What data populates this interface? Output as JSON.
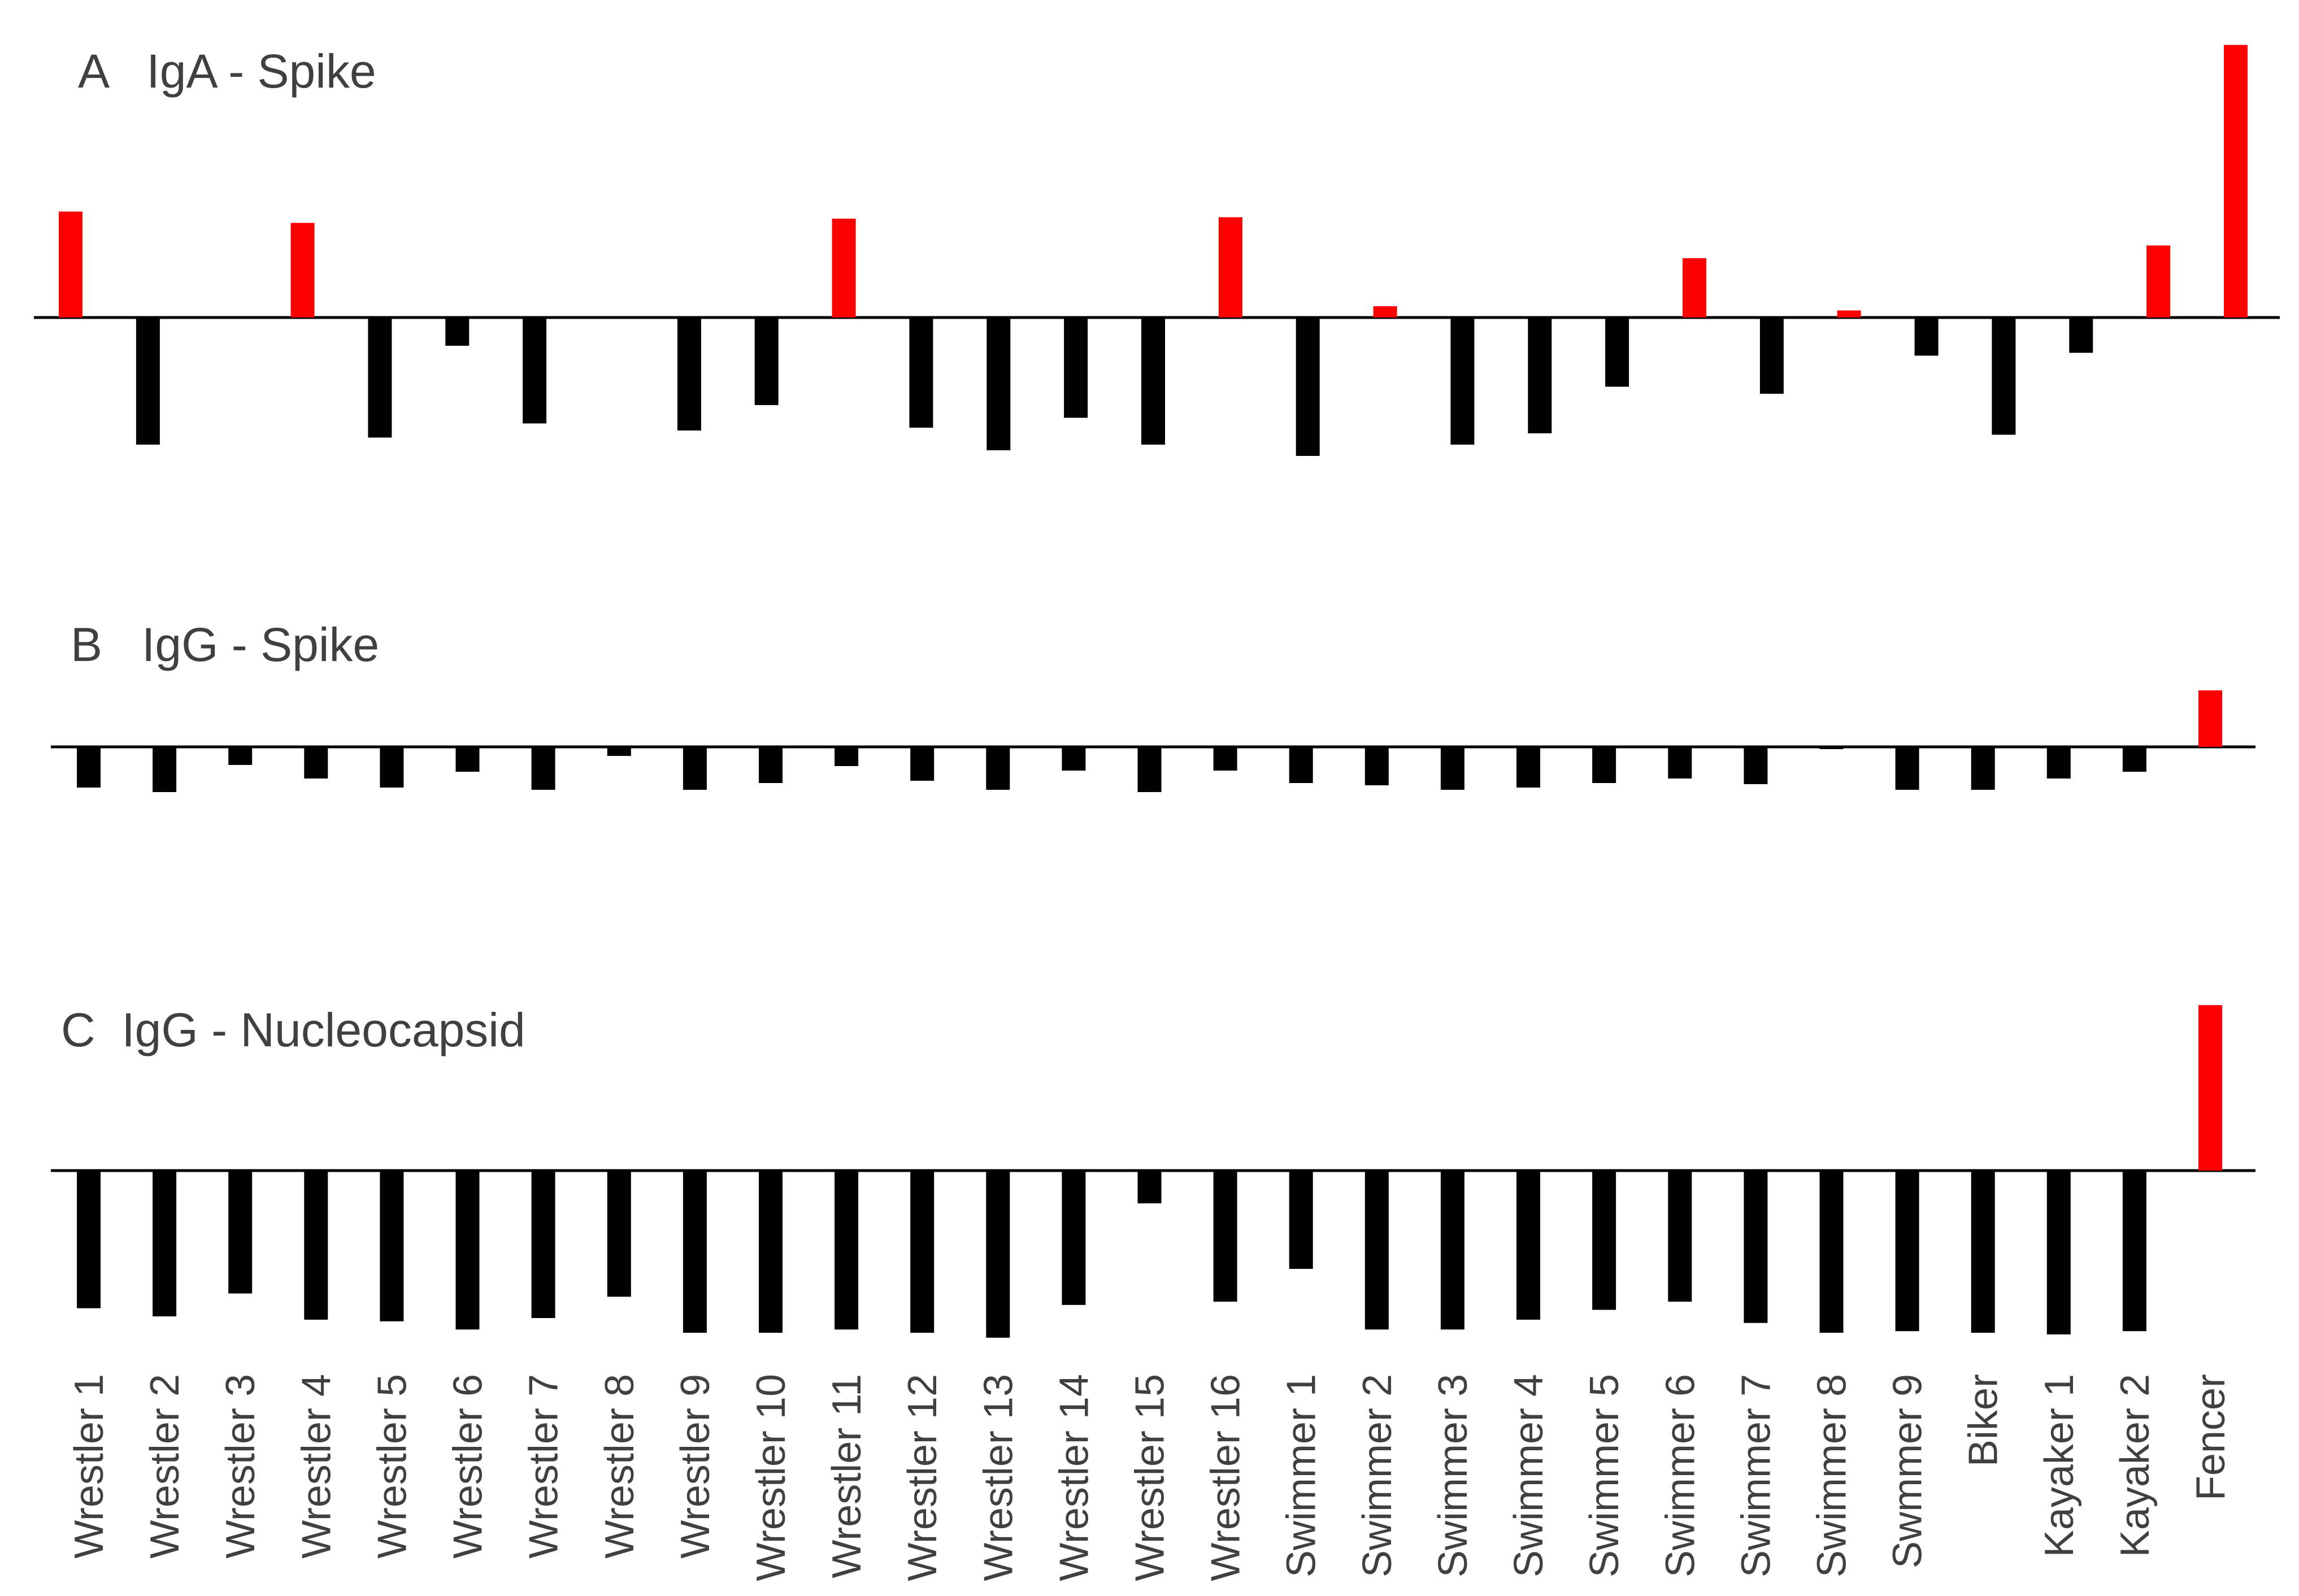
{
  "chart_data": [
    {
      "type": "bar",
      "title": "A   IgA - Spike",
      "categories": [
        "Wrestler 1",
        "Wrestler 2",
        "Wrestler 3",
        "Wrestler 4",
        "Wrestler 5",
        "Wrestler 6",
        "Wrestler 7",
        "Wrestler 8",
        "Wrestler 9",
        "Wrestler 10",
        "Wrestler 11",
        "Wrestler 12",
        "Wrestler 13",
        "Wrestler 14",
        "Wrestler 15",
        "Wrestler 16",
        "Swimmer 1",
        "Swimmer 2",
        "Swimmer 3",
        "Swimmer 4",
        "Swimmer 5",
        "Swimmer 6",
        "Swimmer 7",
        "Swimmer 8",
        "Swmmer 9",
        "Biker",
        "Kayaker 1",
        "Kayaker 2",
        "Fencer"
      ],
      "values": [
        0.75,
        -0.9,
        0,
        0.67,
        -0.85,
        -0.2,
        -0.75,
        0,
        -0.8,
        -0.62,
        0.7,
        -0.78,
        -0.94,
        -0.71,
        -0.9,
        0.71,
        -0.98,
        0.08,
        -0.9,
        -0.82,
        -0.49,
        0.42,
        -0.54,
        0.05,
        -0.27,
        -0.83,
        -0.25,
        0.51,
        1.93
      ],
      "ylim": [
        -1.5,
        2.0
      ],
      "xlabel": "",
      "ylabel": "",
      "grid": false,
      "colors": {
        "positive": "#ff0000",
        "negative": "#000000"
      }
    },
    {
      "type": "bar",
      "title": "B   IgG - Spike",
      "categories": [
        "Wrestler 1",
        "Wrestler 2",
        "Wrestler 3",
        "Wrestler 4",
        "Wrestler 5",
        "Wrestler 6",
        "Wrestler 7",
        "Wrestler 8",
        "Wrestler 9",
        "Wrestler 10",
        "Wrestler 11",
        "Wrestler 12",
        "Wrestler 13",
        "Wrestler 14",
        "Wrestler 15",
        "Wrestler 16",
        "Swimmer 1",
        "Swimmer 2",
        "Swimmer 3",
        "Swimmer 4",
        "Swimmer 5",
        "Swimmer 6",
        "Swimmer 7",
        "Swimmer 8",
        "Swmmer 9",
        "Biker",
        "Kayaker 1",
        "Kayaker 2",
        "Fencer"
      ],
      "values": [
        -0.36,
        -0.4,
        -0.16,
        -0.28,
        -0.36,
        -0.22,
        -0.38,
        -0.08,
        -0.38,
        -0.32,
        -0.17,
        -0.3,
        -0.38,
        -0.21,
        -0.4,
        -0.21,
        -0.32,
        -0.34,
        -0.38,
        -0.36,
        -0.32,
        -0.28,
        -0.33,
        -0.02,
        -0.38,
        -0.38,
        -0.28,
        -0.22,
        0.5
      ],
      "ylim": [
        -1.0,
        1.0
      ],
      "xlabel": "",
      "ylabel": "",
      "grid": false,
      "colors": {
        "positive": "#ff0000",
        "negative": "#000000"
      }
    },
    {
      "type": "bar",
      "title": "C  IgG - Nucleocapsid",
      "categories": [
        "Wrestler 1",
        "Wrestler 2",
        "Wrestler 3",
        "Wrestler 4",
        "Wrestler 5",
        "Wrestler 6",
        "Wrestler 7",
        "Wrestler 8",
        "Wrestler 9",
        "Wrestler 10",
        "Wrestler 11",
        "Wrestler 12",
        "Wrestler 13",
        "Wrestler 14",
        "Wrestler 15",
        "Wrestler 16",
        "Swimmer 1",
        "Swimmer 2",
        "Swimmer 3",
        "Swimmer 4",
        "Swimmer 5",
        "Swimmer 6",
        "Swimmer 7",
        "Swimmer 8",
        "Swmmer 9",
        "Biker",
        "Kayaker 1",
        "Kayaker 2",
        "Fencer"
      ],
      "values": [
        -0.84,
        -0.89,
        -0.75,
        -0.91,
        -0.92,
        -0.97,
        -0.9,
        -0.77,
        -0.99,
        -0.99,
        -0.97,
        -0.99,
        -1.02,
        -0.82,
        -0.2,
        -0.8,
        -0.6,
        -0.97,
        -0.97,
        -0.91,
        -0.85,
        -0.8,
        -0.93,
        -0.99,
        -0.98,
        -0.99,
        -1.0,
        -0.98,
        1.01
      ],
      "ylim": [
        -1.1,
        1.2
      ],
      "xlabel": "",
      "ylabel": "",
      "grid": false,
      "colors": {
        "positive": "#ff0000",
        "negative": "#000000"
      }
    }
  ]
}
